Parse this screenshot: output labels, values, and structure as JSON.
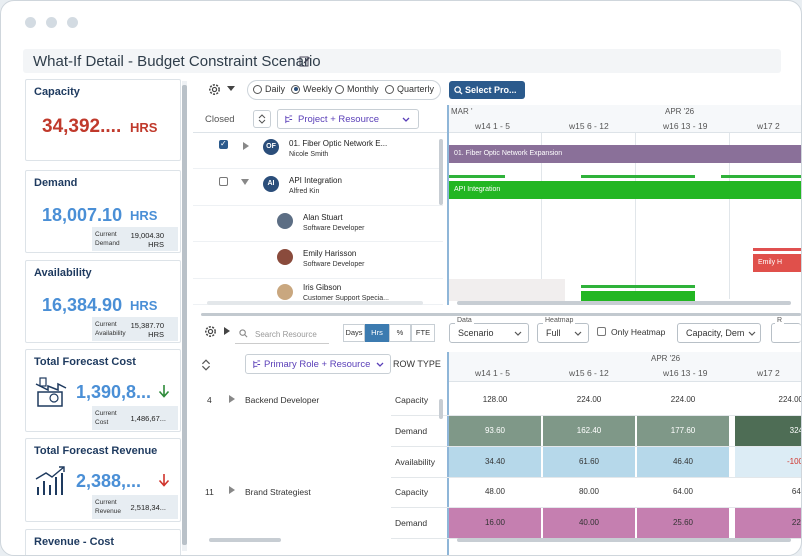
{
  "header": {
    "title": "What-If Detail - Budget Constraint Scenario",
    "edit_icon": "edit-icon"
  },
  "cards": {
    "capacity": {
      "title": "Capacity",
      "value": "34,392....",
      "unit": "HRS",
      "color": "#c0392b"
    },
    "demand": {
      "title": "Demand",
      "value": "18,007.10",
      "unit": "HRS",
      "sub_label": "Current Demand",
      "sub_value": "19,004.30 HRS",
      "color": "#4a8fd6"
    },
    "availability": {
      "title": "Availability",
      "value": "16,384.90",
      "unit": "HRS",
      "sub_label": "Current Availability",
      "sub_value": "15,387.70 HRS",
      "color": "#4a8fd6"
    },
    "forecast_cost": {
      "title": "Total Forecast Cost",
      "value": "1,390,8...",
      "sub_label": "Current Cost",
      "sub_value": "1,486,67...",
      "trend": "down",
      "trend_color": "#2e8b3a",
      "color": "#4a8fd6"
    },
    "forecast_revenue": {
      "title": "Total Forecast Revenue",
      "value": "2,388,...",
      "sub_label": "Current Revenue",
      "sub_value": "2,518,34...",
      "trend": "down",
      "trend_color": "#d0342c",
      "color": "#4a8fd6"
    },
    "revenue_cost": {
      "title": "Revenue - Cost"
    }
  },
  "toolbar": {
    "radios": [
      "Daily",
      "Weekly",
      "Monthly",
      "Quarterly"
    ],
    "selected_radio": "Weekly",
    "select_projects_label": "Select Pro..."
  },
  "gantt": {
    "closed_label": "Closed",
    "group_by": "Project + Resource",
    "months": [
      "MAR '",
      "APR '26"
    ],
    "weeks": [
      "w14 1 - 5",
      "w15 6 - 12",
      "w16 13 - 19",
      "w17 2"
    ],
    "rows": [
      {
        "avatar": "OF",
        "name": "01. Fiber Optic Network E...",
        "sub": "Nicole Smith",
        "checked": true,
        "bar": "01. Fiber Optic Network Expansion"
      },
      {
        "avatar": "AI",
        "name": "API Integration",
        "sub": "Alfred Kin",
        "checked": false,
        "bar": "API Integration"
      },
      {
        "name": "Alan Stuart",
        "sub": "Software Developer"
      },
      {
        "name": "Emily Harisson",
        "sub": "Software Developer",
        "bar": "Emily H"
      },
      {
        "name": "Iris Gibson",
        "sub": "Customer Support Specia..."
      }
    ]
  },
  "heatmap": {
    "search_placeholder": "Search Resource",
    "unit_toggles": [
      "Days",
      "Hrs",
      "%",
      "FTE"
    ],
    "active_toggle": "Hrs",
    "data_label": "Data",
    "data_value": "Scenario",
    "heatmap_label": "Heatmap",
    "heatmap_value": "Full",
    "only_heatmap": "Only Heatmap",
    "capacity_dd": "Capacity, Dem",
    "r_label": "R",
    "group_by": "Primary Role + Resource",
    "row_type": "ROW TYPE",
    "month": "APR '26",
    "weeks": [
      "w14 1 - 5",
      "w15 6 - 12",
      "w16 13 - 19",
      "w17 2"
    ],
    "groups": [
      {
        "num": "4",
        "role": "Backend Developer"
      },
      {
        "num": "11",
        "role": "Brand Strategiest"
      }
    ],
    "rows": [
      {
        "type": "Capacity",
        "values": [
          "128.00",
          "224.00",
          "224.00",
          "224.00"
        ]
      },
      {
        "type": "Demand",
        "values": [
          "93.60",
          "162.40",
          "177.60",
          "324"
        ]
      },
      {
        "type": "Availability",
        "values": [
          "34.40",
          "61.60",
          "46.40",
          "-100"
        ]
      },
      {
        "type": "Capacity",
        "values": [
          "48.00",
          "80.00",
          "64.00",
          "64."
        ]
      },
      {
        "type": "Demand",
        "values": [
          "16.00",
          "40.00",
          "25.60",
          "22."
        ]
      }
    ]
  }
}
